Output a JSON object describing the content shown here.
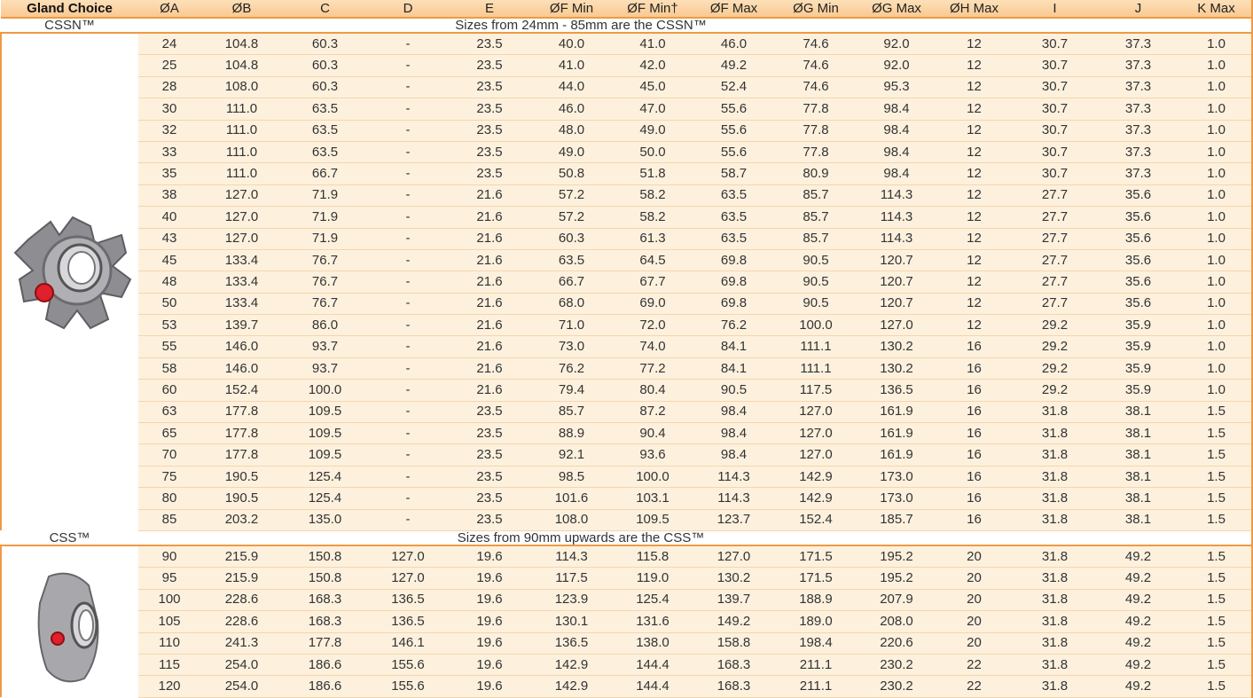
{
  "table": {
    "header": [
      "Gland Choice",
      "ØA",
      "ØB",
      "C",
      "D",
      "E",
      "ØF Min",
      "ØF Min†",
      "ØF Max",
      "ØG Min",
      "ØG Max",
      "ØH Max",
      "I",
      "J",
      "K Max"
    ],
    "sections": [
      {
        "name": "CSSN™",
        "note": "Sizes from 24mm - 85mm are the CSSN™",
        "rows": [
          [
            "24",
            "104.8",
            "60.3",
            "-",
            "23.5",
            "40.0",
            "41.0",
            "46.0",
            "74.6",
            "92.0",
            "12",
            "30.7",
            "37.3",
            "1.0"
          ],
          [
            "25",
            "104.8",
            "60.3",
            "-",
            "23.5",
            "41.0",
            "42.0",
            "49.2",
            "74.6",
            "92.0",
            "12",
            "30.7",
            "37.3",
            "1.0"
          ],
          [
            "28",
            "108.0",
            "60.3",
            "-",
            "23.5",
            "44.0",
            "45.0",
            "52.4",
            "74.6",
            "95.3",
            "12",
            "30.7",
            "37.3",
            "1.0"
          ],
          [
            "30",
            "111.0",
            "63.5",
            "-",
            "23.5",
            "46.0",
            "47.0",
            "55.6",
            "77.8",
            "98.4",
            "12",
            "30.7",
            "37.3",
            "1.0"
          ],
          [
            "32",
            "111.0",
            "63.5",
            "-",
            "23.5",
            "48.0",
            "49.0",
            "55.6",
            "77.8",
            "98.4",
            "12",
            "30.7",
            "37.3",
            "1.0"
          ],
          [
            "33",
            "111.0",
            "63.5",
            "-",
            "23.5",
            "49.0",
            "50.0",
            "55.6",
            "77.8",
            "98.4",
            "12",
            "30.7",
            "37.3",
            "1.0"
          ],
          [
            "35",
            "111.0",
            "66.7",
            "-",
            "23.5",
            "50.8",
            "51.8",
            "58.7",
            "80.9",
            "98.4",
            "12",
            "30.7",
            "37.3",
            "1.0"
          ],
          [
            "38",
            "127.0",
            "71.9",
            "-",
            "21.6",
            "57.2",
            "58.2",
            "63.5",
            "85.7",
            "114.3",
            "12",
            "27.7",
            "35.6",
            "1.0"
          ],
          [
            "40",
            "127.0",
            "71.9",
            "-",
            "21.6",
            "57.2",
            "58.2",
            "63.5",
            "85.7",
            "114.3",
            "12",
            "27.7",
            "35.6",
            "1.0"
          ],
          [
            "43",
            "127.0",
            "71.9",
            "-",
            "21.6",
            "60.3",
            "61.3",
            "63.5",
            "85.7",
            "114.3",
            "12",
            "27.7",
            "35.6",
            "1.0"
          ],
          [
            "45",
            "133.4",
            "76.7",
            "-",
            "21.6",
            "63.5",
            "64.5",
            "69.8",
            "90.5",
            "120.7",
            "12",
            "27.7",
            "35.6",
            "1.0"
          ],
          [
            "48",
            "133.4",
            "76.7",
            "-",
            "21.6",
            "66.7",
            "67.7",
            "69.8",
            "90.5",
            "120.7",
            "12",
            "27.7",
            "35.6",
            "1.0"
          ],
          [
            "50",
            "133.4",
            "76.7",
            "-",
            "21.6",
            "68.0",
            "69.0",
            "69.8",
            "90.5",
            "120.7",
            "12",
            "27.7",
            "35.6",
            "1.0"
          ],
          [
            "53",
            "139.7",
            "86.0",
            "-",
            "21.6",
            "71.0",
            "72.0",
            "76.2",
            "100.0",
            "127.0",
            "12",
            "29.2",
            "35.9",
            "1.0"
          ],
          [
            "55",
            "146.0",
            "93.7",
            "-",
            "21.6",
            "73.0",
            "74.0",
            "84.1",
            "111.1",
            "130.2",
            "16",
            "29.2",
            "35.9",
            "1.0"
          ],
          [
            "58",
            "146.0",
            "93.7",
            "-",
            "21.6",
            "76.2",
            "77.2",
            "84.1",
            "111.1",
            "130.2",
            "16",
            "29.2",
            "35.9",
            "1.0"
          ],
          [
            "60",
            "152.4",
            "100.0",
            "-",
            "21.6",
            "79.4",
            "80.4",
            "90.5",
            "117.5",
            "136.5",
            "16",
            "29.2",
            "35.9",
            "1.0"
          ],
          [
            "63",
            "177.8",
            "109.5",
            "-",
            "23.5",
            "85.7",
            "87.2",
            "98.4",
            "127.0",
            "161.9",
            "16",
            "31.8",
            "38.1",
            "1.5"
          ],
          [
            "65",
            "177.8",
            "109.5",
            "-",
            "23.5",
            "88.9",
            "90.4",
            "98.4",
            "127.0",
            "161.9",
            "16",
            "31.8",
            "38.1",
            "1.5"
          ],
          [
            "70",
            "177.8",
            "109.5",
            "-",
            "23.5",
            "92.1",
            "93.6",
            "98.4",
            "127.0",
            "161.9",
            "16",
            "31.8",
            "38.1",
            "1.5"
          ],
          [
            "75",
            "190.5",
            "125.4",
            "-",
            "23.5",
            "98.5",
            "100.0",
            "114.3",
            "142.9",
            "173.0",
            "16",
            "31.8",
            "38.1",
            "1.5"
          ],
          [
            "80",
            "190.5",
            "125.4",
            "-",
            "23.5",
            "101.6",
            "103.1",
            "114.3",
            "142.9",
            "173.0",
            "16",
            "31.8",
            "38.1",
            "1.5"
          ],
          [
            "85",
            "203.2",
            "135.0",
            "-",
            "23.5",
            "108.0",
            "109.5",
            "123.7",
            "152.4",
            "185.7",
            "16",
            "31.8",
            "38.1",
            "1.5"
          ]
        ]
      },
      {
        "name": "CSS™",
        "note": "Sizes from 90mm upwards are the CSS™",
        "rows": [
          [
            "90",
            "215.9",
            "150.8",
            "127.0",
            "19.6",
            "114.3",
            "115.8",
            "127.0",
            "171.5",
            "195.2",
            "20",
            "31.8",
            "49.2",
            "1.5"
          ],
          [
            "95",
            "215.9",
            "150.8",
            "127.0",
            "19.6",
            "117.5",
            "119.0",
            "130.2",
            "171.5",
            "195.2",
            "20",
            "31.8",
            "49.2",
            "1.5"
          ],
          [
            "100",
            "228.6",
            "168.3",
            "136.5",
            "19.6",
            "123.9",
            "125.4",
            "139.7",
            "188.9",
            "207.9",
            "20",
            "31.8",
            "49.2",
            "1.5"
          ],
          [
            "105",
            "228.6",
            "168.3",
            "136.5",
            "19.6",
            "130.1",
            "131.6",
            "149.2",
            "189.0",
            "208.0",
            "20",
            "31.8",
            "49.2",
            "1.5"
          ],
          [
            "110",
            "241.3",
            "177.8",
            "146.1",
            "19.6",
            "136.5",
            "138.0",
            "158.8",
            "198.4",
            "220.6",
            "20",
            "31.8",
            "49.2",
            "1.5"
          ],
          [
            "115",
            "254.0",
            "186.6",
            "155.6",
            "19.6",
            "142.9",
            "144.4",
            "168.3",
            "211.1",
            "230.2",
            "22",
            "31.8",
            "49.2",
            "1.5"
          ],
          [
            "120",
            "254.0",
            "186.6",
            "155.6",
            "19.6",
            "142.9",
            "144.4",
            "168.3",
            "211.1",
            "230.2",
            "22",
            "31.8",
            "49.2",
            "1.5"
          ]
        ]
      }
    ]
  }
}
